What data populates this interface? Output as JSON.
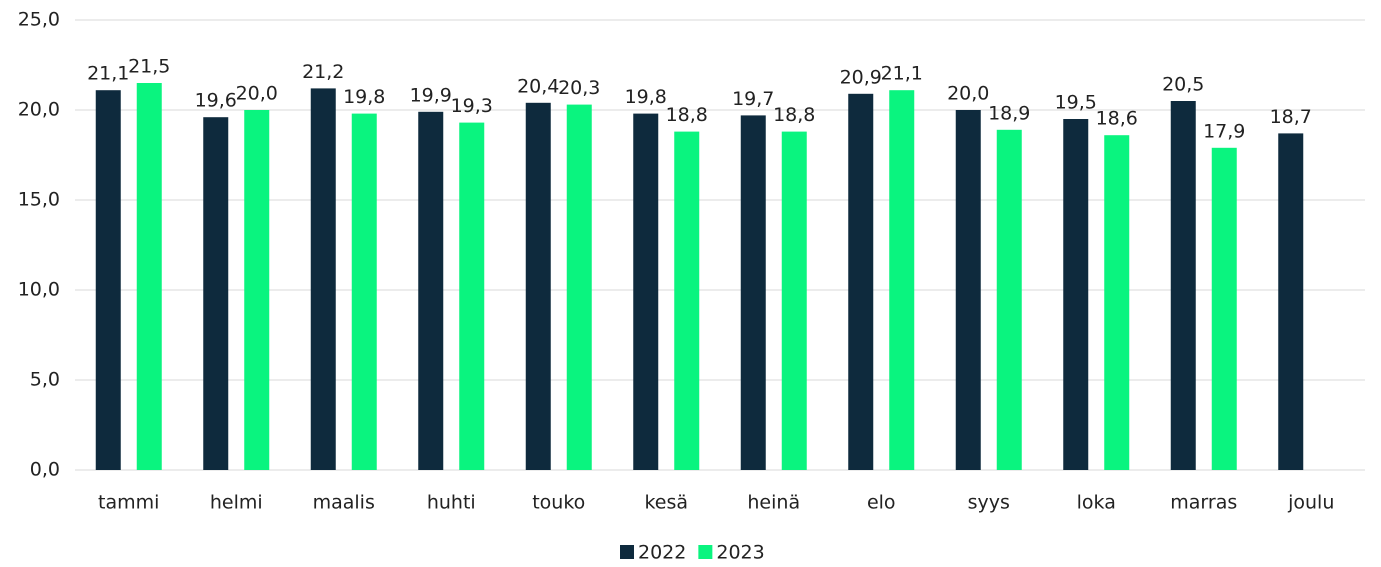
{
  "chart_data": {
    "type": "bar",
    "categories": [
      "tammi",
      "helmi",
      "maalis",
      "huhti",
      "touko",
      "kesä",
      "heinä",
      "elo",
      "syys",
      "loka",
      "marras",
      "joulu"
    ],
    "series": [
      {
        "name": "2022",
        "color": "#0e2a3d",
        "values": [
          21.1,
          19.6,
          21.2,
          19.9,
          20.4,
          19.8,
          19.7,
          20.9,
          20.0,
          19.5,
          20.5,
          18.7
        ],
        "value_labels": [
          "21,1",
          "19,6",
          "21,2",
          "19,9",
          "20,4",
          "19,8",
          "19,7",
          "20,9",
          "20,0",
          "19,5",
          "20,5",
          "18,7"
        ]
      },
      {
        "name": "2023",
        "color": "#0af47f",
        "values": [
          21.5,
          20.0,
          19.8,
          19.3,
          20.3,
          18.8,
          18.8,
          21.1,
          18.9,
          18.6,
          17.9,
          null
        ],
        "value_labels": [
          "21,5",
          "20,0",
          "19,8",
          "19,3",
          "20,3",
          "18,8",
          "18,8",
          "21,1",
          "18,9",
          "18,6",
          "17,9",
          null
        ]
      }
    ],
    "ylim": [
      0,
      25
    ],
    "yticks": [
      {
        "value": 0,
        "label": "0,0"
      },
      {
        "value": 5,
        "label": "5,0"
      },
      {
        "value": 10,
        "label": "10,0"
      },
      {
        "value": 15,
        "label": "15,0"
      },
      {
        "value": 20,
        "label": "20,0"
      },
      {
        "value": 25,
        "label": "25,0"
      }
    ],
    "grid": true,
    "legend": "bottom"
  }
}
